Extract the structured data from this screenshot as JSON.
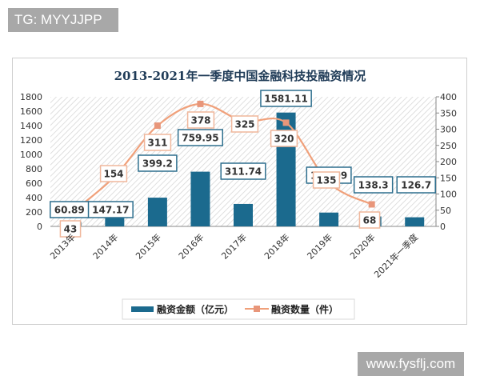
{
  "watermarks": {
    "top_left": "TG: MYYJJPP",
    "bottom_right": "www.fysflj.com"
  },
  "colors": {
    "bar": "#1b6a8e",
    "line": "#f0a07a",
    "marker": "#e8967a",
    "bar_label_border": "#2e6f8e",
    "line_label_border": "#f0b79c",
    "title": "#1f3b57",
    "hatch": "#d8d8d8"
  },
  "chart_data": {
    "type": "bar+line",
    "title": "2013-2021年一季度中国金融科技投融资情况",
    "categories": [
      "2013年",
      "2014年",
      "2015年",
      "2016年",
      "2017年",
      "2018年",
      "2019年",
      "2020年",
      "2021年一季度"
    ],
    "series": [
      {
        "name": "融资金额（亿元）",
        "type": "bar",
        "axis": "left",
        "values": [
          60.89,
          147.17,
          399.2,
          759.95,
          311.74,
          1581.11,
          192.09,
          138.3,
          126.7
        ]
      },
      {
        "name": "融资数量（件）",
        "type": "line",
        "axis": "right",
        "values": [
          43,
          154,
          311,
          378,
          325,
          320,
          135,
          68,
          null
        ]
      }
    ],
    "y_left": {
      "ticks": [
        0,
        200,
        400,
        600,
        800,
        1000,
        1200,
        1400,
        1600,
        1800
      ],
      "ylim": [
        0,
        1800
      ]
    },
    "y_right": {
      "ticks": [
        0,
        50,
        100,
        150,
        200,
        250,
        300,
        350,
        400
      ],
      "ylim": [
        0,
        400
      ]
    },
    "legend": {
      "position": "bottom",
      "entries": [
        "融资金额（亿元）",
        "融资数量（件）"
      ]
    },
    "grid": false,
    "background": "diagonal hatch"
  }
}
